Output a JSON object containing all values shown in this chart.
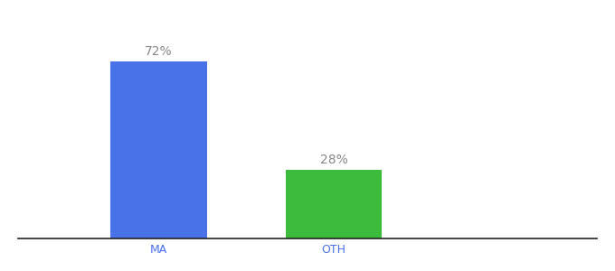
{
  "categories": [
    "MA",
    "OTH"
  ],
  "values": [
    72,
    28
  ],
  "bar_colors": [
    "#4a72e8",
    "#3dbb3d"
  ],
  "label_color": "#888888",
  "label_fontsize": 10,
  "tick_fontsize": 9,
  "tick_color": "#4a72e8",
  "background_color": "#ffffff",
  "ylim": [
    0,
    88
  ],
  "bar_width": 0.55,
  "annotations": [
    "72%",
    "28%"
  ]
}
